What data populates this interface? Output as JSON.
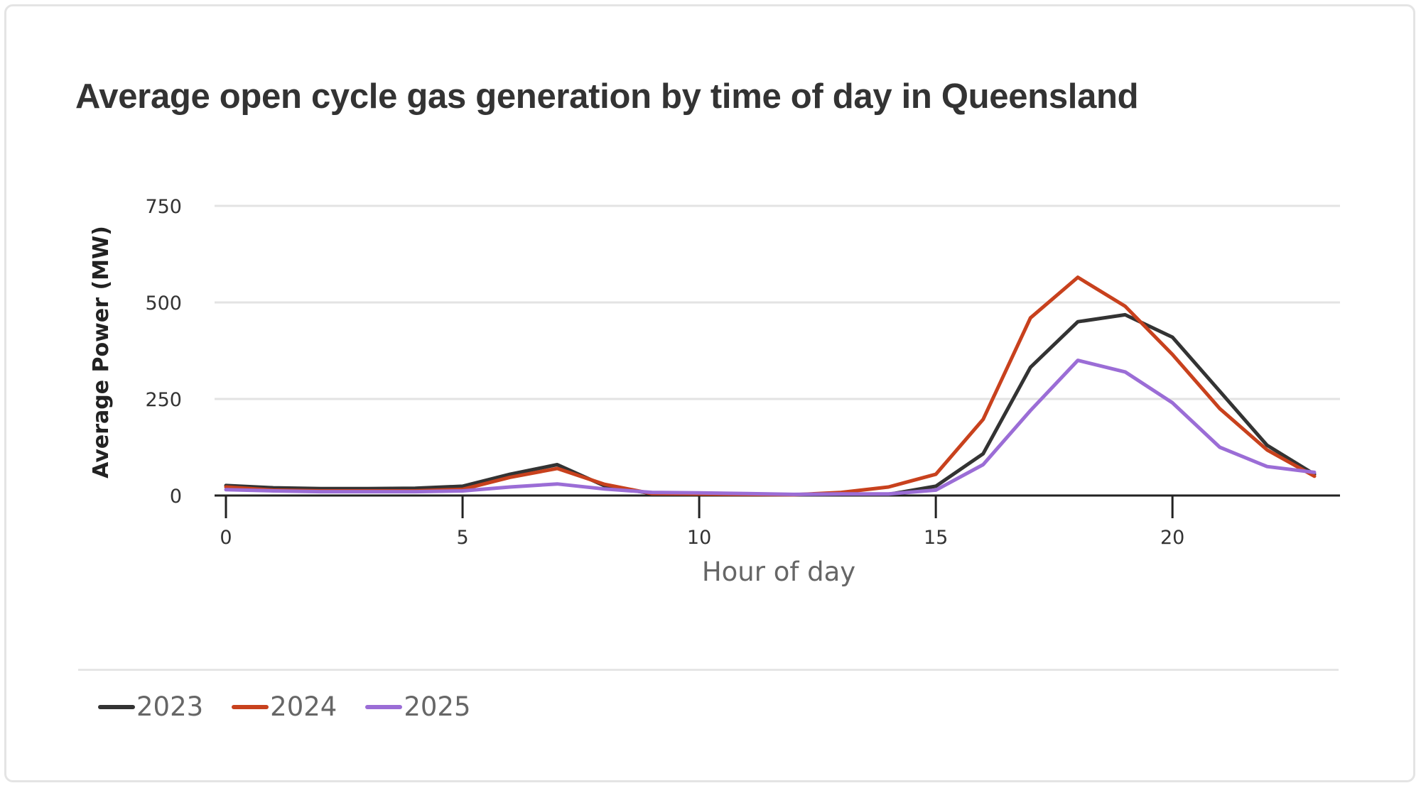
{
  "chart_data": {
    "type": "line",
    "title": "Average open cycle gas generation by time of day in Queensland",
    "xlabel": "Hour of day",
    "ylabel": "Average Power (MW)",
    "xlim": [
      0,
      23
    ],
    "ylim": [
      0,
      750
    ],
    "x_ticks": [
      0,
      5,
      10,
      15,
      20
    ],
    "y_ticks": [
      0,
      250,
      500,
      750
    ],
    "grid": "horizontal",
    "legend_position": "bottom-left",
    "x": [
      0,
      1,
      2,
      3,
      4,
      5,
      6,
      7,
      8,
      9,
      10,
      11,
      12,
      13,
      14,
      15,
      16,
      17,
      18,
      19,
      20,
      21,
      22,
      23
    ],
    "series": [
      {
        "name": "2023",
        "color": "#333333",
        "values": [
          26,
          20,
          18,
          18,
          19,
          24,
          55,
          80,
          25,
          5,
          4,
          3,
          2,
          3,
          3,
          24,
          108,
          332,
          450,
          468,
          410,
          270,
          130,
          55
        ]
      },
      {
        "name": "2024",
        "color": "#c8411d",
        "values": [
          22,
          14,
          12,
          12,
          12,
          16,
          47,
          70,
          29,
          5,
          4,
          3,
          2,
          8,
          22,
          55,
          197,
          460,
          565,
          490,
          365,
          225,
          118,
          50
        ]
      },
      {
        "name": "2025",
        "color": "#9b6dd6",
        "values": [
          15,
          12,
          10,
          10,
          10,
          12,
          22,
          30,
          17,
          8,
          7,
          5,
          3,
          4,
          4,
          14,
          80,
          220,
          350,
          320,
          240,
          125,
          75,
          60
        ]
      }
    ]
  }
}
